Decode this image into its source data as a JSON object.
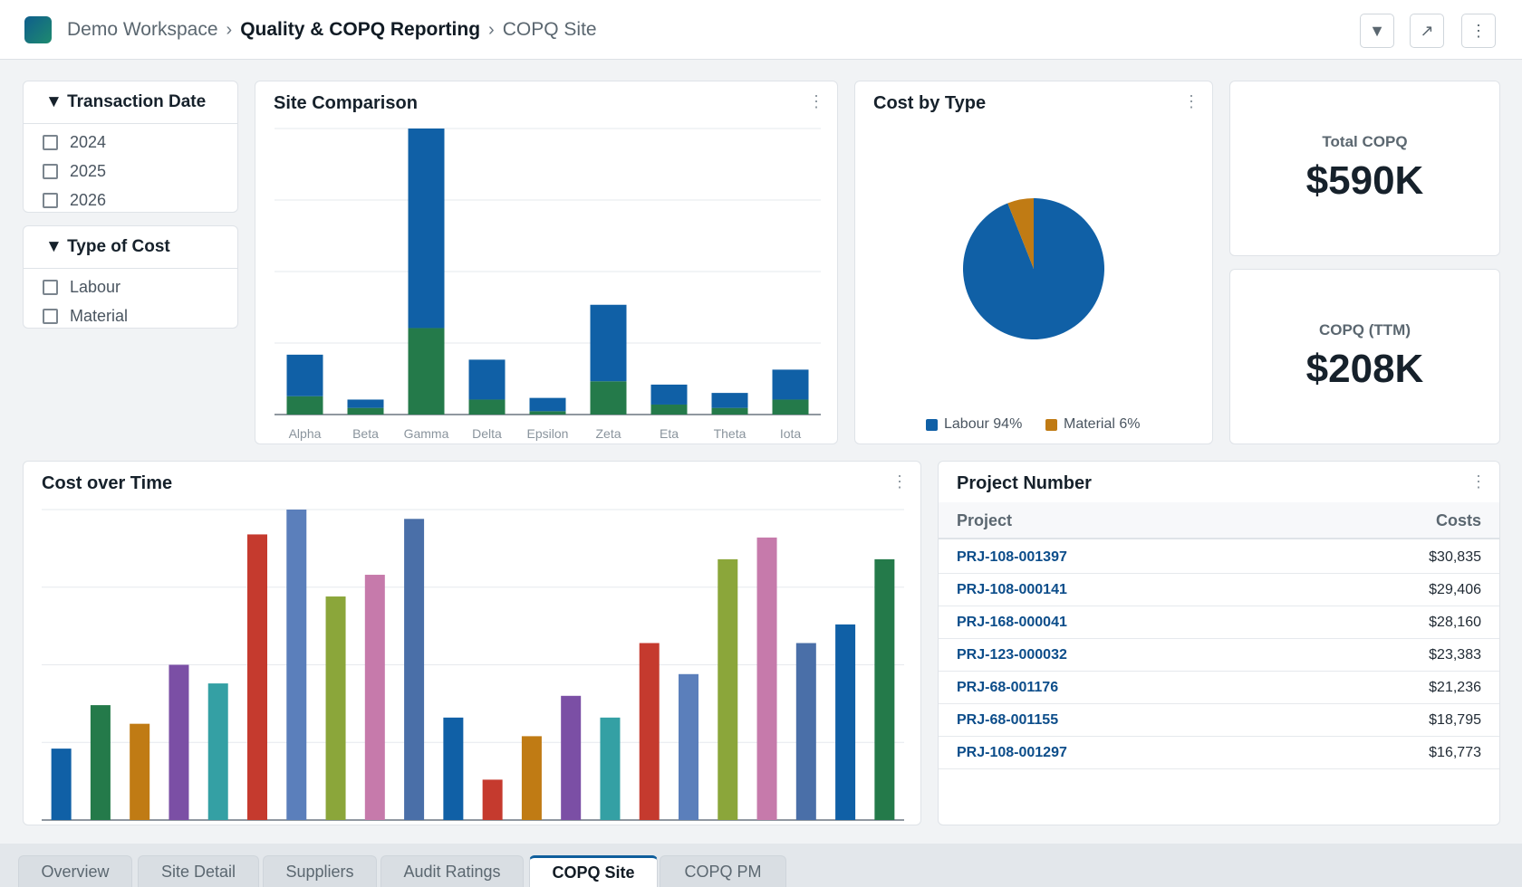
{
  "header": {
    "workspace": "Demo Workspace",
    "report": "Quality & COPQ Reporting",
    "page": "COPQ Site",
    "separator": "›",
    "buttons": {
      "filter_icon": "▼",
      "share_icon": "↗",
      "more_icon": "⋮"
    }
  },
  "filters": [
    {
      "title": "Transaction Date",
      "caret": "▼",
      "options": [
        "2024",
        "2025",
        "2026"
      ]
    },
    {
      "title": "Type of Cost",
      "caret": "▼",
      "options": [
        "Labour",
        "Material"
      ]
    }
  ],
  "site_comparison": {
    "title": "Site Comparison",
    "menu": "⋮"
  },
  "cost_by_type": {
    "title": "Cost by Type",
    "menu": "⋮",
    "legend": [
      {
        "label": "Labour 94%",
        "color": "#1060a6"
      },
      {
        "label": "Material 6%",
        "color": "#c07b14"
      }
    ]
  },
  "kpis": [
    {
      "label": "Total COPQ",
      "value": "$590K"
    },
    {
      "label": "COPQ (TTM)",
      "value": "$208K"
    }
  ],
  "cost_over_time": {
    "title": "Cost over Time",
    "menu": "⋮"
  },
  "project_table": {
    "title": "Project Number",
    "menu": "⋮",
    "columns": [
      "Project",
      "Costs"
    ],
    "rows": [
      {
        "project": "PRJ-108-001397",
        "cost": "$30,835"
      },
      {
        "project": "PRJ-108-000141",
        "cost": "$29,406"
      },
      {
        "project": "PRJ-168-000041",
        "cost": "$28,160"
      },
      {
        "project": "PRJ-123-000032",
        "cost": "$23,383"
      },
      {
        "project": "PRJ-68-001176",
        "cost": "$21,236"
      },
      {
        "project": "PRJ-68-001155",
        "cost": "$18,795"
      },
      {
        "project": "PRJ-108-001297",
        "cost": "$16,773"
      }
    ]
  },
  "tabs": [
    {
      "label": "Overview",
      "active": false
    },
    {
      "label": "Site Detail",
      "active": false
    },
    {
      "label": "Suppliers",
      "active": false
    },
    {
      "label": "Audit Ratings",
      "active": false
    },
    {
      "label": "COPQ Site",
      "active": true
    },
    {
      "label": "COPQ PM",
      "active": false
    }
  ],
  "colors": {
    "labour": "#1060a6",
    "material": "#247a4a",
    "pie_material": "#c07b14",
    "accent": "#0f5e9c"
  },
  "chart_data": [
    {
      "type": "bar",
      "stacked": true,
      "chart": "Site Comparison",
      "categories": [
        "Alpha",
        "Beta",
        "Gamma",
        "Delta",
        "Epsilon",
        "Zeta",
        "Eta",
        "Theta",
        "Iota"
      ],
      "series": [
        {
          "values": [
            25,
            5,
            120,
            24,
            8,
            46,
            12,
            9,
            18
          ],
          "color": "#1060a6"
        },
        {
          "values": [
            11,
            4,
            52,
            9,
            2,
            20,
            6,
            4,
            9
          ],
          "color": "#247a4a"
        }
      ],
      "ylim": [
        0,
        172
      ],
      "grid": true
    },
    {
      "type": "pie",
      "chart": "Cost by Type",
      "categories": [
        "Labour",
        "Material"
      ],
      "values": [
        94,
        6
      ],
      "colors": [
        "#1060a6",
        "#c07b14"
      ]
    },
    {
      "type": "bar",
      "chart": "Cost over Time",
      "values": [
        23,
        37,
        31,
        50,
        44,
        92,
        100,
        72,
        79,
        97,
        33,
        13,
        27,
        40,
        33,
        57,
        47,
        84,
        91,
        57,
        63,
        84
      ],
      "colors": [
        "#1060a6",
        "#247a4a",
        "#c07b14",
        "#7b4fa5",
        "#34a0a4",
        "#c53a2e",
        "#5b7fbb",
        "#8ba63a",
        "#c67aab",
        "#4a6fa8",
        "#1060a6",
        "#c53a2e",
        "#c07b14",
        "#7b4fa5",
        "#34a0a4",
        "#c53a2e",
        "#5b7fbb",
        "#8ba63a",
        "#c67aab",
        "#4a6fa8",
        "#1060a6",
        "#247a4a"
      ],
      "ylim": [
        0,
        100
      ],
      "grid": true
    }
  ]
}
